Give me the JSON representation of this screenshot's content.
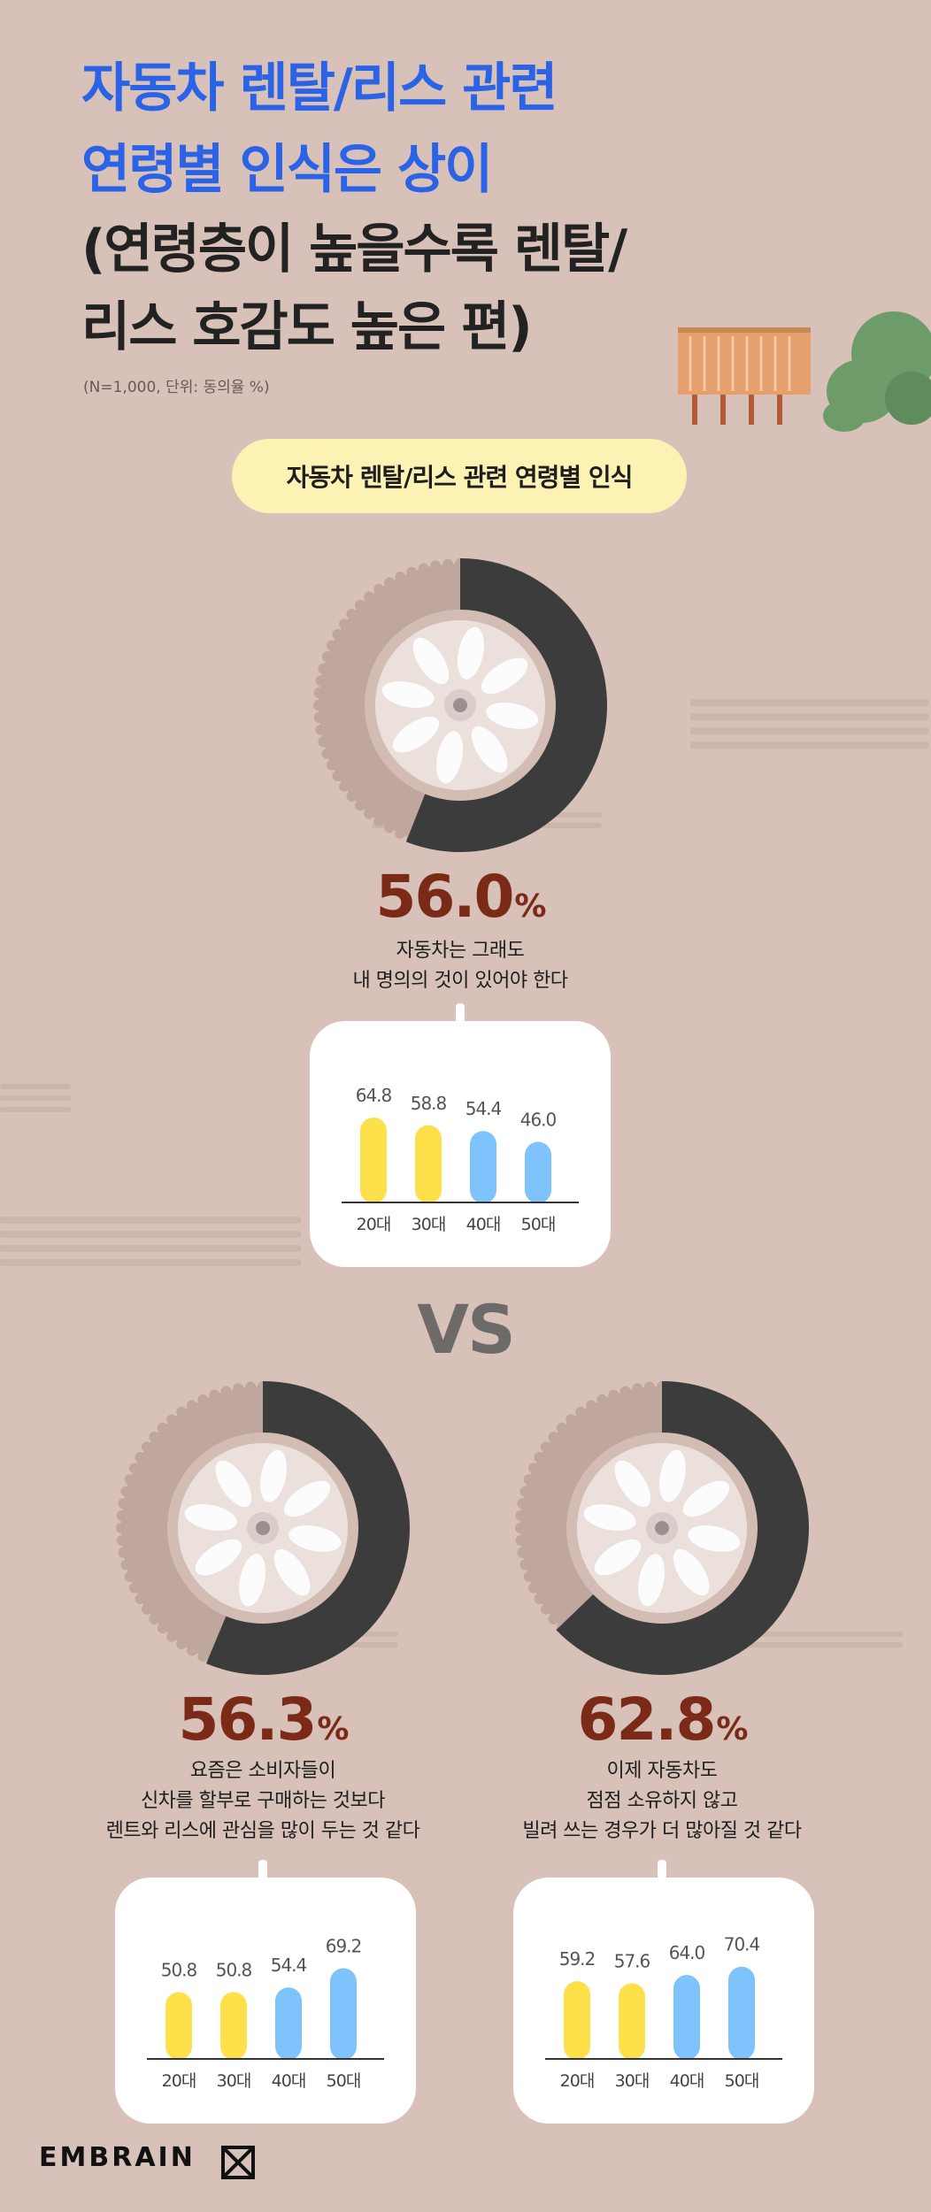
{
  "title": {
    "line1": "자동차 렌탈/리스 관련",
    "line2": "연령별 인식은 상이",
    "line3": "(연령층이 높을수록 렌탈/",
    "line4": "리스 호감도 높은 편)"
  },
  "note": "(N=1,000, 단위: 동의율 %)",
  "pill_label": "자동차 렌탈/리스 관련 연령별 인식",
  "vs_label": "VS",
  "brand": "EMBRAIN",
  "colors": {
    "background": "#d7c1b8",
    "title_blue": "#2b63e6",
    "percent_brown": "#7a2a16",
    "bar_yellow": "#fde04a",
    "bar_blue": "#7ec3fb",
    "tire_dark": "#3c3c3c"
  },
  "stats": [
    {
      "percent": "56.0",
      "unit": "%",
      "desc_lines": [
        "자동차는 그래도",
        "내 명의의 것이 있어야 한다"
      ]
    },
    {
      "percent": "56.3",
      "unit": "%",
      "desc_lines": [
        "요즘은 소비자들이",
        "신차를 할부로 구매하는 것보다",
        "렌트와 리스에 관심을 많이 두는 것 같다"
      ]
    },
    {
      "percent": "62.8",
      "unit": "%",
      "desc_lines": [
        "이제 자동차도",
        "점점 소유하지 않고",
        "빌려 쓰는 경우가 더 많아질 것 같다"
      ]
    }
  ],
  "chart_data": [
    {
      "type": "bar",
      "categories": [
        "20대",
        "30대",
        "40대",
        "50대"
      ],
      "values": [
        64.8,
        58.8,
        54.4,
        46.0
      ],
      "labels": [
        "64.8",
        "58.8",
        "54.4",
        "46.0"
      ],
      "overall": 56.0
    },
    {
      "type": "bar",
      "categories": [
        "20대",
        "30대",
        "40대",
        "50대"
      ],
      "values": [
        50.8,
        50.8,
        54.4,
        69.2
      ],
      "labels": [
        "50.8",
        "50.8",
        "54.4",
        "69.2"
      ],
      "overall": 56.3
    },
    {
      "type": "bar",
      "categories": [
        "20대",
        "30대",
        "40대",
        "50대"
      ],
      "values": [
        59.2,
        57.6,
        64.0,
        70.4
      ],
      "labels": [
        "59.2",
        "57.6",
        "64.0",
        "70.4"
      ],
      "overall": 62.8
    }
  ]
}
